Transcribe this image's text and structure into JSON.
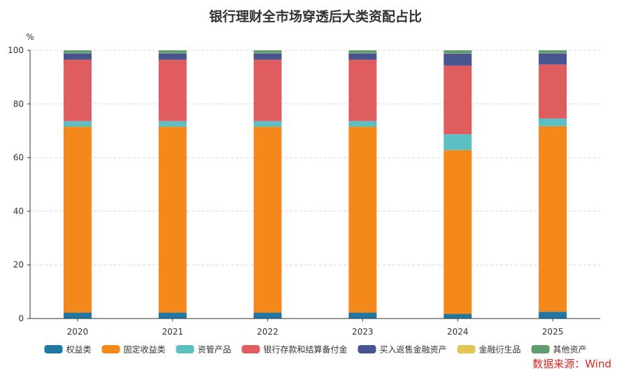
{
  "chart_data": {
    "type": "bar",
    "stacked": true,
    "title": "银行理财全市场穿透后大类资配占比",
    "ylabel": "%",
    "xlabel": "",
    "ylim": [
      0,
      100
    ],
    "yticks": [
      0,
      20,
      40,
      60,
      80,
      100
    ],
    "grid": true,
    "legend_position": "bottom",
    "categories": [
      "2020",
      "2021",
      "2022",
      "2023",
      "2024",
      "2025"
    ],
    "series": [
      {
        "name": "权益类",
        "color": "#1f77a4",
        "values": [
          2.2,
          2.2,
          2.2,
          2.2,
          1.7,
          2.5
        ]
      },
      {
        "name": "固定收益类",
        "color": "#f5881b",
        "values": [
          69.3,
          69.3,
          69.3,
          69.3,
          61.1,
          69.2
        ]
      },
      {
        "name": "资管产品",
        "color": "#5cbfc2",
        "values": [
          2.1,
          2.1,
          2.1,
          2.1,
          5.9,
          2.9
        ]
      },
      {
        "name": "银行存款和结算备付金",
        "color": "#e05d5f",
        "values": [
          22.9,
          22.9,
          22.9,
          22.9,
          25.6,
          20.1
        ]
      },
      {
        "name": "买入返售金融资产",
        "color": "#465590",
        "values": [
          2.4,
          2.4,
          2.4,
          2.4,
          4.5,
          4.2
        ]
      },
      {
        "name": "金融衍生品",
        "color": "#e3c454",
        "values": [
          0.1,
          0.1,
          0.1,
          0.1,
          0.1,
          0.1
        ]
      },
      {
        "name": "其他资产",
        "color": "#5e9e6e",
        "values": [
          1.0,
          1.0,
          1.0,
          1.0,
          1.1,
          1.0
        ]
      }
    ]
  },
  "source": "数据来源：Wind"
}
